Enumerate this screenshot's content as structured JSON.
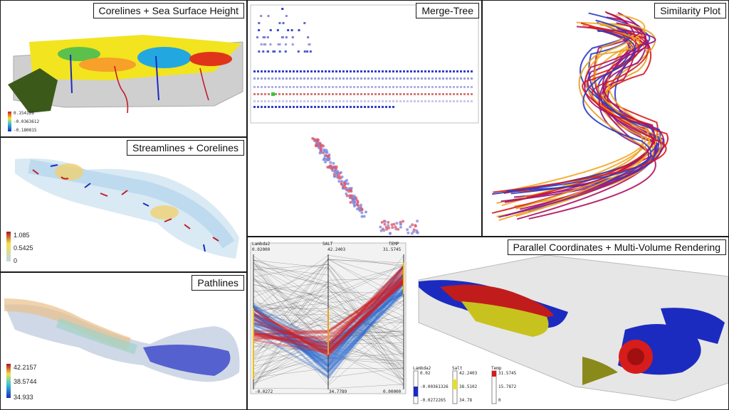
{
  "panels": {
    "corelines": {
      "title": "Corelines + Sea Surface Height",
      "legend": [
        "0.154126",
        "-0.0363612",
        "-0.180815"
      ]
    },
    "streamlines": {
      "title": "Streamlines + Corelines",
      "legend": [
        "1.085",
        "0.5425",
        "0"
      ]
    },
    "pathlines": {
      "title": "Pathlines",
      "legend": [
        "42.2157",
        "38.5744",
        "34.933"
      ]
    },
    "mergetree": {
      "title": "Merge-Tree"
    },
    "similarity": {
      "title": "Similarity Plot"
    },
    "parallel": {
      "title": "Parallel Coordinates + Multi-Volume Rendering",
      "axes": [
        "Lambda2",
        "SALT",
        "TEMP"
      ],
      "axis_top": [
        "0.02000",
        "42.2403",
        "31.5745"
      ],
      "axis_bottom": [
        "-0.0272",
        "34.7789",
        "0.00000"
      ],
      "legends": {
        "lambda2": {
          "name": "Lambda2",
          "values": [
            "0.02",
            "-0.00361326",
            "-0.0272265"
          ]
        },
        "salt": {
          "name": "Salt",
          "values": [
            "42.2403",
            "38.5102",
            "34.78"
          ]
        },
        "temp": {
          "name": "Temp",
          "values": [
            "31.5745",
            "15.7872",
            "0"
          ]
        }
      }
    }
  },
  "colors": {
    "red": "#d7191c",
    "blue": "#2b3cc4",
    "yellow": "#e6e02a",
    "orange": "#f5a623",
    "purple": "#8a1a8a"
  }
}
